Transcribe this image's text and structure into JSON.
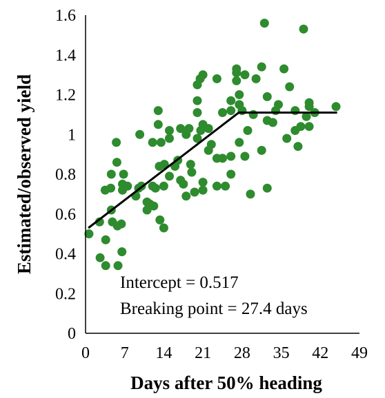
{
  "chart_data": {
    "type": "scatter",
    "xlabel": "Days after 50% heading",
    "ylabel": "Estimated/observed yield",
    "xlim": [
      0,
      49
    ],
    "ylim": [
      0,
      1.6
    ],
    "xticks": [
      "0",
      "7",
      "14",
      "21",
      "28",
      "35",
      "42",
      "49"
    ],
    "yticks": [
      "0",
      "0.2",
      "0.4",
      "0.6",
      "0.8",
      "1",
      "1.2",
      "1.4",
      "1.6"
    ],
    "grid": false,
    "legend": "none",
    "point_color": "#2e8b2e",
    "line_color": "#000000",
    "annotations": [
      "Intercept = 0.517",
      "Breaking point = 27.4 days"
    ],
    "fit_line": [
      [
        0.5,
        0.53
      ],
      [
        27.4,
        1.11
      ],
      [
        45,
        1.11
      ]
    ],
    "points": [
      [
        0.6,
        0.5
      ],
      [
        2.5,
        0.56
      ],
      [
        2.6,
        0.38
      ],
      [
        3.5,
        0.72
      ],
      [
        3.6,
        0.47
      ],
      [
        3.6,
        0.34
      ],
      [
        4.5,
        0.73
      ],
      [
        4.6,
        0.8
      ],
      [
        4.6,
        0.62
      ],
      [
        4.8,
        0.56
      ],
      [
        5.5,
        0.96
      ],
      [
        5.6,
        0.86
      ],
      [
        5.7,
        0.54
      ],
      [
        5.8,
        0.34
      ],
      [
        6.4,
        0.55
      ],
      [
        6.5,
        0.41
      ],
      [
        6.6,
        0.72
      ],
      [
        6.6,
        0.75
      ],
      [
        6.8,
        0.8
      ],
      [
        7.5,
        0.74
      ],
      [
        9.0,
        0.69
      ],
      [
        9.5,
        0.73
      ],
      [
        9.7,
        1.0
      ],
      [
        10.0,
        0.74
      ],
      [
        11.0,
        0.66
      ],
      [
        11.0,
        0.62
      ],
      [
        11.5,
        0.65
      ],
      [
        12.0,
        0.96
      ],
      [
        12.0,
        0.74
      ],
      [
        12.2,
        0.64
      ],
      [
        12.5,
        0.73
      ],
      [
        13.0,
        1.12
      ],
      [
        13.0,
        1.05
      ],
      [
        13.2,
        0.84
      ],
      [
        13.3,
        0.57
      ],
      [
        13.5,
        0.96
      ],
      [
        14.0,
        0.74
      ],
      [
        14.0,
        0.53
      ],
      [
        14.1,
        0.85
      ],
      [
        15.0,
        1.02
      ],
      [
        15.0,
        0.98
      ],
      [
        15.0,
        0.79
      ],
      [
        16.0,
        0.84
      ],
      [
        16.5,
        0.87
      ],
      [
        17.0,
        1.03
      ],
      [
        17.0,
        0.77
      ],
      [
        17.5,
        0.75
      ],
      [
        18.0,
        1.0
      ],
      [
        18.0,
        0.69
      ],
      [
        18.5,
        1.03
      ],
      [
        18.8,
        0.85
      ],
      [
        19.0,
        0.81
      ],
      [
        19.5,
        0.71
      ],
      [
        20.0,
        1.25
      ],
      [
        20.0,
        1.17
      ],
      [
        20.0,
        1.11
      ],
      [
        20.0,
        0.98
      ],
      [
        20.5,
        1.28
      ],
      [
        20.6,
        1.02
      ],
      [
        21.0,
        1.3
      ],
      [
        21.0,
        1.05
      ],
      [
        21.0,
        0.76
      ],
      [
        21.0,
        0.72
      ],
      [
        22.0,
        1.03
      ],
      [
        22.0,
        0.92
      ],
      [
        22.5,
        0.95
      ],
      [
        23.5,
        1.28
      ],
      [
        23.5,
        0.88
      ],
      [
        23.5,
        0.74
      ],
      [
        24.5,
        1.11
      ],
      [
        24.5,
        0.88
      ],
      [
        25.0,
        0.74
      ],
      [
        26.0,
        1.17
      ],
      [
        26.0,
        1.12
      ],
      [
        26.0,
        0.89
      ],
      [
        26.0,
        0.8
      ],
      [
        27.0,
        1.33
      ],
      [
        27.0,
        1.31
      ],
      [
        27.0,
        1.27
      ],
      [
        27.5,
        1.2
      ],
      [
        27.5,
        1.15
      ],
      [
        27.5,
        0.96
      ],
      [
        28.0,
        1.12
      ],
      [
        28.5,
        1.3
      ],
      [
        28.5,
        0.89
      ],
      [
        29.0,
        1.02
      ],
      [
        29.5,
        0.7
      ],
      [
        30.0,
        1.1
      ],
      [
        30.5,
        1.28
      ],
      [
        31.5,
        1.34
      ],
      [
        31.5,
        0.92
      ],
      [
        32.0,
        1.56
      ],
      [
        32.5,
        1.19
      ],
      [
        32.5,
        1.07
      ],
      [
        32.5,
        0.73
      ],
      [
        33.5,
        1.06
      ],
      [
        34.0,
        1.12
      ],
      [
        34.5,
        1.15
      ],
      [
        35.5,
        1.33
      ],
      [
        36.0,
        0.98
      ],
      [
        36.5,
        1.24
      ],
      [
        37.5,
        1.12
      ],
      [
        37.5,
        1.02
      ],
      [
        38.0,
        0.94
      ],
      [
        38.5,
        1.04
      ],
      [
        39.0,
        1.53
      ],
      [
        39.5,
        1.09
      ],
      [
        40.0,
        1.16
      ],
      [
        40.0,
        1.14
      ],
      [
        40.0,
        1.04
      ],
      [
        41.0,
        1.11
      ],
      [
        44.8,
        1.14
      ]
    ]
  }
}
